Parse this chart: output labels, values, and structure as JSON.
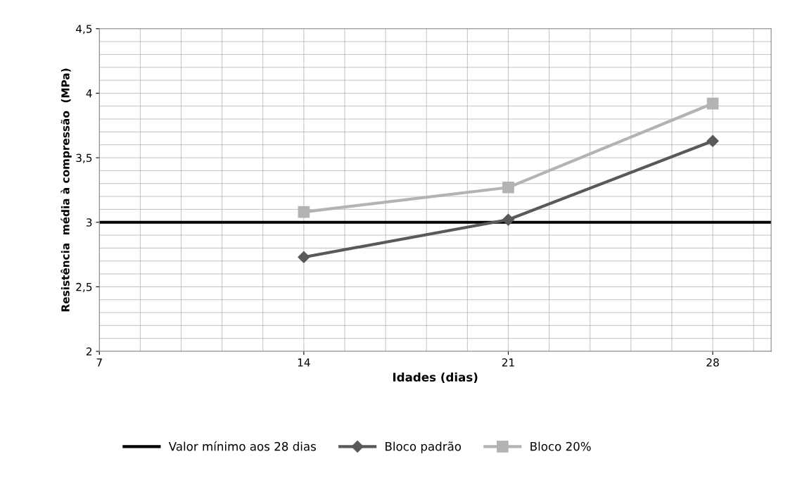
{
  "chart_data": {
    "type": "line",
    "xlabel": "Idades (dias)",
    "ylabel": "Resistência  média à compressão  (MPa)",
    "x": [
      14,
      21,
      28
    ],
    "series": [
      {
        "name": "Bloco padrão",
        "color": "#595959",
        "marker": "diamond",
        "values": [
          2.73,
          3.02,
          3.63
        ]
      },
      {
        "name": "Bloco 20%",
        "color": "#b3b3b3",
        "marker": "square",
        "values": [
          3.08,
          3.27,
          3.92
        ]
      }
    ],
    "ref_lines": [
      {
        "axis": "y",
        "value": 3,
        "label": "Valor mínimo aos 28 dias",
        "color": "#000000"
      }
    ],
    "xlim": [
      7,
      30
    ],
    "xticks": [
      7,
      14,
      21,
      28
    ],
    "ylim": [
      2,
      4.5
    ],
    "yticks": [
      2,
      {
        "value": 2.5,
        "label": "2,5"
      },
      3,
      {
        "value": 3.5,
        "label": "3,5"
      },
      4,
      {
        "value": 4.5,
        "label": "4,5"
      }
    ],
    "grid": true,
    "legend": "bottom",
    "line_style": "solid"
  }
}
